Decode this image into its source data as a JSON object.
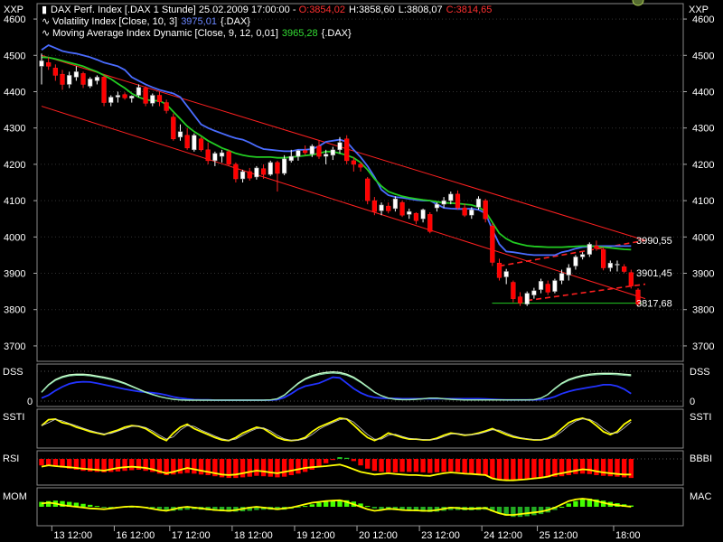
{
  "window": {
    "corner_label_left": "XXP",
    "corner_label_right": "XXP"
  },
  "legend": {
    "title": "DAX Perf. Index [.DAX  1 Stunde] 25.02.2009 17:00:00 - ",
    "ohlc": {
      "o": "O:3854,02",
      "h": "H:3858,60",
      "l": "L:3808,07",
      "c": "C:3814,65"
    },
    "line2_name": "Volatility Index [Close, 10, 3]",
    "line2_value": "3975,01",
    "line2_sym": "{.DAX}",
    "line3_name": "Moving Average Index Dynamic [Close, 9, 12, 0,01]",
    "line3_value": "3965,28",
    "line3_sym": "{.DAX}"
  },
  "colors": {
    "up": "#ffffff",
    "down": "#ff0000",
    "vol": "#4a6cff",
    "ma": "#22cc22",
    "channel": "#ff2020",
    "support": "#22cc22",
    "grid": "#444444",
    "dss_fast": "#ccffcc",
    "dss_slow": "#2233ff",
    "ssti": "#ffff00",
    "rsi": "#ffff00",
    "bbbi_neg": "#ff0000",
    "bbbi_pos": "#22cc22",
    "mom": "#ffff00",
    "mac_pos": "#44ff00",
    "mac_neg": "#22aa22"
  },
  "price_axis": {
    "ticks": [
      "4600",
      "4500",
      "4400",
      "4300",
      "4200",
      "4100",
      "4000",
      "3900",
      "3800",
      "3700"
    ],
    "ylim": [
      3660,
      4640
    ]
  },
  "price_annotations": [
    {
      "value": 3990.55,
      "text": "3990,55",
      "color": "#ff2020"
    },
    {
      "value": 3901.45,
      "text": "3901,45",
      "color": "#ff2020"
    },
    {
      "value": 3817.68,
      "text": "3817,68",
      "color": "#22cc22"
    }
  ],
  "x_axis": {
    "labels": [
      "13 12:00",
      "16 12:00",
      "17 12:00",
      "18 12:00",
      "19 12:00",
      "20 12:00",
      "23 12:00",
      "24 12:00",
      "25 12:00",
      "18:00"
    ]
  },
  "panels": {
    "dss": {
      "left_label": "DSS",
      "right_label": "DSS",
      "tick_left": "0",
      "tick_right": "0"
    },
    "ssti": {
      "left_label": "SSTI",
      "right_label": "SSTI"
    },
    "rsi": {
      "left_label": "RSI",
      "right_label": "BBBI"
    },
    "mom": {
      "left_label": "MOM",
      "right_label": "MAC"
    }
  },
  "chart_data": {
    "type": "candlestick",
    "candles": [
      [
        4470,
        4505,
        4420,
        4485
      ],
      [
        4480,
        4495,
        4460,
        4470
      ],
      [
        4465,
        4475,
        4430,
        4445
      ],
      [
        4448,
        4460,
        4405,
        4420
      ],
      [
        4420,
        4455,
        4410,
        4445
      ],
      [
        4440,
        4470,
        4430,
        4455
      ],
      [
        4450,
        4455,
        4410,
        4420
      ],
      [
        4415,
        4440,
        4410,
        4435
      ],
      [
        4430,
        4445,
        4420,
        4440
      ],
      [
        4440,
        4445,
        4360,
        4370
      ],
      [
        4370,
        4390,
        4360,
        4385
      ],
      [
        4385,
        4400,
        4370,
        4390
      ],
      [
        4392,
        4398,
        4378,
        4383
      ],
      [
        4382,
        4390,
        4370,
        4388
      ],
      [
        4390,
        4420,
        4385,
        4412
      ],
      [
        4410,
        4415,
        4360,
        4368
      ],
      [
        4368,
        4395,
        4360,
        4390
      ],
      [
        4390,
        4400,
        4360,
        4372
      ],
      [
        4370,
        4378,
        4340,
        4348
      ],
      [
        4330,
        4340,
        4265,
        4270
      ],
      [
        4275,
        4310,
        4265,
        4290
      ],
      [
        4280,
        4300,
        4240,
        4245
      ],
      [
        4240,
        4285,
        4235,
        4280
      ],
      [
        4270,
        4275,
        4235,
        4240
      ],
      [
        4240,
        4260,
        4200,
        4210
      ],
      [
        4210,
        4235,
        4195,
        4230
      ],
      [
        4222,
        4240,
        4205,
        4232
      ],
      [
        4235,
        4240,
        4195,
        4200
      ],
      [
        4200,
        4205,
        4150,
        4160
      ],
      [
        4160,
        4185,
        4150,
        4180
      ],
      [
        4180,
        4190,
        4155,
        4162
      ],
      [
        4165,
        4195,
        4158,
        4190
      ],
      [
        4188,
        4200,
        4160,
        4172
      ],
      [
        4172,
        4210,
        4168,
        4205
      ],
      [
        4205,
        4210,
        4125,
        4175
      ],
      [
        4175,
        4225,
        4170,
        4215
      ],
      [
        4210,
        4240,
        4205,
        4222
      ],
      [
        4222,
        4240,
        4210,
        4238
      ],
      [
        4238,
        4252,
        4225,
        4232
      ],
      [
        4228,
        4255,
        4220,
        4250
      ],
      [
        4250,
        4265,
        4215,
        4222
      ],
      [
        4222,
        4240,
        4200,
        4228
      ],
      [
        4225,
        4248,
        4212,
        4240
      ],
      [
        4240,
        4275,
        4230,
        4260
      ],
      [
        4270,
        4280,
        4200,
        4210
      ],
      [
        4210,
        4220,
        4180,
        4200
      ],
      [
        4200,
        4205,
        4180,
        4192
      ],
      [
        4160,
        4165,
        4090,
        4100
      ],
      [
        4100,
        4110,
        4060,
        4070
      ],
      [
        4072,
        4095,
        4060,
        4088
      ],
      [
        4085,
        4095,
        4065,
        4072
      ],
      [
        4078,
        4112,
        4070,
        4105
      ],
      [
        4095,
        4100,
        4055,
        4060
      ],
      [
        4062,
        4078,
        4050,
        4070
      ],
      [
        4065,
        4068,
        4035,
        4045
      ],
      [
        4050,
        4078,
        4040,
        4075
      ],
      [
        4062,
        4068,
        4010,
        4015
      ],
      [
        4080,
        4095,
        4070,
        4090
      ],
      [
        4090,
        4110,
        4080,
        4100
      ],
      [
        4100,
        4125,
        4090,
        4118
      ],
      [
        4118,
        4128,
        4075,
        4080
      ],
      [
        4080,
        4092,
        4055,
        4060
      ],
      [
        4060,
        4082,
        4050,
        4075
      ],
      [
        4082,
        4112,
        4075,
        4105
      ],
      [
        4100,
        4105,
        4040,
        4050
      ],
      [
        4030,
        4038,
        3920,
        3930
      ],
      [
        3928,
        3940,
        3880,
        3888
      ],
      [
        3890,
        3912,
        3870,
        3905
      ],
      [
        3875,
        3880,
        3820,
        3830
      ],
      [
        3835,
        3848,
        3810,
        3818
      ],
      [
        3815,
        3850,
        3810,
        3845
      ],
      [
        3840,
        3860,
        3830,
        3852
      ],
      [
        3855,
        3885,
        3845,
        3878
      ],
      [
        3870,
        3880,
        3840,
        3848
      ],
      [
        3850,
        3885,
        3845,
        3880
      ],
      [
        3880,
        3910,
        3870,
        3900
      ],
      [
        3895,
        3925,
        3880,
        3915
      ],
      [
        3920,
        3950,
        3910,
        3945
      ],
      [
        3945,
        3958,
        3938,
        3952
      ],
      [
        3952,
        3985,
        3945,
        3980
      ],
      [
        3975,
        3990,
        3962,
        3968
      ],
      [
        3965,
        3972,
        3908,
        3915
      ],
      [
        3915,
        3935,
        3905,
        3928
      ],
      [
        3925,
        3935,
        3905,
        3925
      ],
      [
        3918,
        3925,
        3900,
        3905
      ],
      [
        3902,
        3910,
        3858,
        3865
      ],
      [
        3854,
        3859,
        3808,
        3815
      ]
    ],
    "volatility_index": [
      4515,
      4528,
      4520,
      4512,
      4508,
      4505,
      4500,
      4495,
      4488,
      4480,
      4475,
      4470,
      4460,
      4440,
      4430,
      4420,
      4412,
      4405,
      4400,
      4395,
      4385,
      4360,
      4335,
      4310,
      4300,
      4292,
      4285,
      4278,
      4272,
      4268,
      4260,
      4250,
      4242,
      4240,
      4238,
      4236,
      4236,
      4240,
      4240,
      4242,
      4250,
      4262,
      4265,
      4268,
      4262,
      4240,
      4220,
      4195,
      4165,
      4130,
      4115,
      4110,
      4108,
      4105,
      4102,
      4100,
      4100,
      4090,
      4080,
      4078,
      4077,
      4077,
      4078,
      4075,
      4065,
      4020,
      3980,
      3960,
      3958,
      3955,
      3952,
      3950,
      3950,
      3950,
      3950,
      3958,
      3962,
      3968,
      3972,
      3974,
      3975,
      3975,
      3975,
      3975,
      3975,
      3975
    ],
    "moving_average": [
      4495,
      4494,
      4490,
      4485,
      4480,
      4475,
      4470,
      4462,
      4455,
      4445,
      4435,
      4422,
      4410,
      4395,
      4385,
      4378,
      4375,
      4375,
      4365,
      4345,
      4325,
      4305,
      4290,
      4278,
      4265,
      4255,
      4245,
      4238,
      4230,
      4225,
      4222,
      4220,
      4220,
      4220,
      4218,
      4218,
      4220,
      4222,
      4224,
      4226,
      4230,
      4235,
      4235,
      4230,
      4225,
      4218,
      4205,
      4185,
      4160,
      4140,
      4125,
      4118,
      4112,
      4108,
      4105,
      4102,
      4100,
      4097,
      4094,
      4093,
      4092,
      4090,
      4088,
      4082,
      4070,
      4040,
      4010,
      3995,
      3985,
      3980,
      3976,
      3974,
      3973,
      3972,
      3972,
      3972,
      3973,
      3974,
      3975,
      3975,
      3974,
      3972,
      3970,
      3968,
      3966,
      3965
    ],
    "channel_upper": {
      "x0": 0,
      "y0": 4500,
      "x1": 86,
      "y1": 3990.55
    },
    "channel_lower": {
      "x0": 0,
      "y0": 4360,
      "x1": 86,
      "y1": 3830
    },
    "wedge_upper": {
      "x0": 66,
      "y0": 3920,
      "x1": 86,
      "y1": 3990.55
    },
    "wedge_lower": {
      "x0": 70,
      "y0": 3825,
      "x1": 86,
      "y1": 3870
    },
    "support": {
      "x0": 66,
      "x1": 86,
      "y": 3817.68
    },
    "dss_fast": [
      0.3,
      0.55,
      0.72,
      0.82,
      0.88,
      0.9,
      0.9,
      0.88,
      0.84,
      0.8,
      0.75,
      0.68,
      0.6,
      0.5,
      0.4,
      0.3,
      0.22,
      0.15,
      0.1,
      0.06,
      0.04,
      0.03,
      0.03,
      0.03,
      0.03,
      0.03,
      0.03,
      0.03,
      0.03,
      0.03,
      0.03,
      0.03,
      0.03,
      0.04,
      0.08,
      0.2,
      0.4,
      0.6,
      0.75,
      0.85,
      0.92,
      0.96,
      0.98,
      0.96,
      0.9,
      0.8,
      0.65,
      0.48,
      0.3,
      0.18,
      0.1,
      0.06,
      0.05,
      0.05,
      0.06,
      0.08,
      0.1,
      0.1,
      0.08,
      0.06,
      0.05,
      0.04,
      0.04,
      0.04,
      0.04,
      0.04,
      0.04,
      0.04,
      0.04,
      0.04,
      0.04,
      0.05,
      0.1,
      0.22,
      0.42,
      0.6,
      0.72,
      0.8,
      0.86,
      0.9,
      0.92,
      0.93,
      0.93,
      0.92,
      0.9,
      0.88
    ],
    "dss_slow": [
      0.1,
      0.2,
      0.35,
      0.48,
      0.58,
      0.63,
      0.65,
      0.64,
      0.6,
      0.55,
      0.5,
      0.45,
      0.4,
      0.36,
      0.32,
      0.3,
      0.28,
      0.25,
      0.2,
      0.14,
      0.1,
      0.07,
      0.05,
      0.04,
      0.04,
      0.03,
      0.03,
      0.03,
      0.03,
      0.03,
      0.03,
      0.03,
      0.03,
      0.03,
      0.05,
      0.12,
      0.25,
      0.4,
      0.5,
      0.55,
      0.6,
      0.7,
      0.8,
      0.78,
      0.6,
      0.42,
      0.28,
      0.18,
      0.12,
      0.1,
      0.09,
      0.09,
      0.08,
      0.08,
      0.08,
      0.08,
      0.08,
      0.08,
      0.08,
      0.08,
      0.08,
      0.08,
      0.08,
      0.08,
      0.07,
      0.06,
      0.05,
      0.04,
      0.04,
      0.04,
      0.04,
      0.04,
      0.05,
      0.08,
      0.15,
      0.25,
      0.32,
      0.38,
      0.42,
      0.46,
      0.5,
      0.55,
      0.55,
      0.5,
      0.4,
      0.25
    ],
    "ssti": [
      0.6,
      0.8,
      0.82,
      0.7,
      0.65,
      0.55,
      0.48,
      0.4,
      0.35,
      0.3,
      0.38,
      0.45,
      0.55,
      0.6,
      0.58,
      0.5,
      0.35,
      0.2,
      0.1,
      0.35,
      0.55,
      0.65,
      0.5,
      0.4,
      0.3,
      0.2,
      0.12,
      0.1,
      0.2,
      0.35,
      0.45,
      0.55,
      0.5,
      0.35,
      0.2,
      0.12,
      0.1,
      0.12,
      0.2,
      0.4,
      0.55,
      0.65,
      0.75,
      0.85,
      0.82,
      0.62,
      0.4,
      0.2,
      0.1,
      0.2,
      0.35,
      0.28,
      0.2,
      0.15,
      0.15,
      0.12,
      0.12,
      0.18,
      0.28,
      0.35,
      0.32,
      0.28,
      0.3,
      0.35,
      0.42,
      0.5,
      0.4,
      0.3,
      0.22,
      0.18,
      0.15,
      0.12,
      0.12,
      0.18,
      0.3,
      0.5,
      0.7,
      0.8,
      0.85,
      0.78,
      0.6,
      0.4,
      0.3,
      0.4,
      0.65,
      0.8
    ],
    "rsi": [
      0.6,
      0.65,
      0.62,
      0.6,
      0.58,
      0.55,
      0.52,
      0.5,
      0.48,
      0.45,
      0.5,
      0.55,
      0.58,
      0.6,
      0.58,
      0.55,
      0.5,
      0.42,
      0.35,
      0.4,
      0.48,
      0.55,
      0.5,
      0.45,
      0.4,
      0.35,
      0.3,
      0.28,
      0.3,
      0.35,
      0.4,
      0.45,
      0.42,
      0.38,
      0.35,
      0.4,
      0.45,
      0.5,
      0.55,
      0.58,
      0.6,
      0.62,
      0.65,
      0.68,
      0.6,
      0.5,
      0.4,
      0.35,
      0.3,
      0.32,
      0.35,
      0.32,
      0.3,
      0.28,
      0.28,
      0.26,
      0.25,
      0.3,
      0.35,
      0.38,
      0.36,
      0.33,
      0.32,
      0.3,
      0.28,
      0.15,
      0.1,
      0.08,
      0.08,
      0.1,
      0.12,
      0.15,
      0.18,
      0.22,
      0.3,
      0.35,
      0.4,
      0.45,
      0.5,
      0.48,
      0.42,
      0.38,
      0.35,
      0.32,
      0.3,
      0.3
    ],
    "bbbi": [
      -0.3,
      -0.32,
      -0.35,
      -0.4,
      -0.45,
      -0.5,
      -0.55,
      -0.58,
      -0.6,
      -0.62,
      -0.6,
      -0.58,
      -0.55,
      -0.52,
      -0.5,
      -0.55,
      -0.6,
      -0.68,
      -0.75,
      -0.72,
      -0.68,
      -0.65,
      -0.68,
      -0.72,
      -0.75,
      -0.8,
      -0.85,
      -0.88,
      -0.88,
      -0.85,
      -0.82,
      -0.78,
      -0.8,
      -0.82,
      -0.85,
      -0.82,
      -0.75,
      -0.68,
      -0.6,
      -0.5,
      -0.35,
      -0.2,
      -0.05,
      0.08,
      0.05,
      -0.1,
      -0.3,
      -0.45,
      -0.55,
      -0.6,
      -0.62,
      -0.62,
      -0.6,
      -0.6,
      -0.6,
      -0.62,
      -0.65,
      -0.62,
      -0.6,
      -0.58,
      -0.6,
      -0.65,
      -0.7,
      -0.72,
      -0.75,
      -0.9,
      -0.98,
      -1.0,
      -1.0,
      -0.98,
      -0.95,
      -0.92,
      -0.88,
      -0.85,
      -0.82,
      -0.8,
      -0.75,
      -0.7,
      -0.68,
      -0.7,
      -0.75,
      -0.78,
      -0.8,
      -0.82,
      -0.85,
      -0.88
    ],
    "mom": [
      0.2,
      0.25,
      0.2,
      0.1,
      0.05,
      0.0,
      -0.05,
      -0.1,
      -0.12,
      -0.15,
      -0.1,
      -0.05,
      0.0,
      0.02,
      0.0,
      -0.05,
      -0.12,
      -0.2,
      -0.25,
      -0.15,
      -0.05,
      0.0,
      -0.05,
      -0.1,
      -0.15,
      -0.2,
      -0.22,
      -0.25,
      -0.2,
      -0.12,
      -0.05,
      0.0,
      -0.05,
      -0.1,
      -0.15,
      -0.1,
      -0.05,
      0.05,
      0.15,
      0.25,
      0.3,
      0.35,
      0.38,
      0.4,
      0.3,
      0.15,
      0.0,
      -0.15,
      -0.25,
      -0.2,
      -0.12,
      -0.15,
      -0.2,
      -0.22,
      -0.22,
      -0.25,
      -0.25,
      -0.2,
      -0.12,
      -0.05,
      -0.08,
      -0.12,
      -0.12,
      -0.1,
      -0.08,
      -0.25,
      -0.4,
      -0.5,
      -0.5,
      -0.45,
      -0.4,
      -0.35,
      -0.3,
      -0.2,
      -0.05,
      0.15,
      0.35,
      0.45,
      0.5,
      0.45,
      0.35,
      0.25,
      0.15,
      0.1,
      0.05,
      0.0
    ],
    "mac": [
      0.3,
      0.35,
      0.38,
      0.35,
      0.3,
      0.25,
      0.18,
      0.12,
      0.05,
      -0.02,
      -0.05,
      -0.08,
      -0.05,
      -0.02,
      0.0,
      -0.02,
      -0.08,
      -0.15,
      -0.22,
      -0.25,
      -0.22,
      -0.18,
      -0.15,
      -0.18,
      -0.22,
      -0.25,
      -0.28,
      -0.3,
      -0.3,
      -0.28,
      -0.25,
      -0.2,
      -0.18,
      -0.18,
      -0.2,
      -0.18,
      -0.12,
      -0.05,
      0.05,
      0.15,
      0.25,
      0.32,
      0.38,
      0.42,
      0.4,
      0.32,
      0.2,
      0.05,
      -0.1,
      -0.18,
      -0.2,
      -0.2,
      -0.22,
      -0.25,
      -0.28,
      -0.3,
      -0.32,
      -0.3,
      -0.25,
      -0.2,
      -0.2,
      -0.22,
      -0.22,
      -0.2,
      -0.18,
      -0.28,
      -0.42,
      -0.55,
      -0.62,
      -0.62,
      -0.58,
      -0.52,
      -0.45,
      -0.35,
      -0.2,
      0.0,
      0.2,
      0.35,
      0.45,
      0.5,
      0.45,
      0.38,
      0.3,
      0.22,
      0.15,
      0.08
    ]
  }
}
